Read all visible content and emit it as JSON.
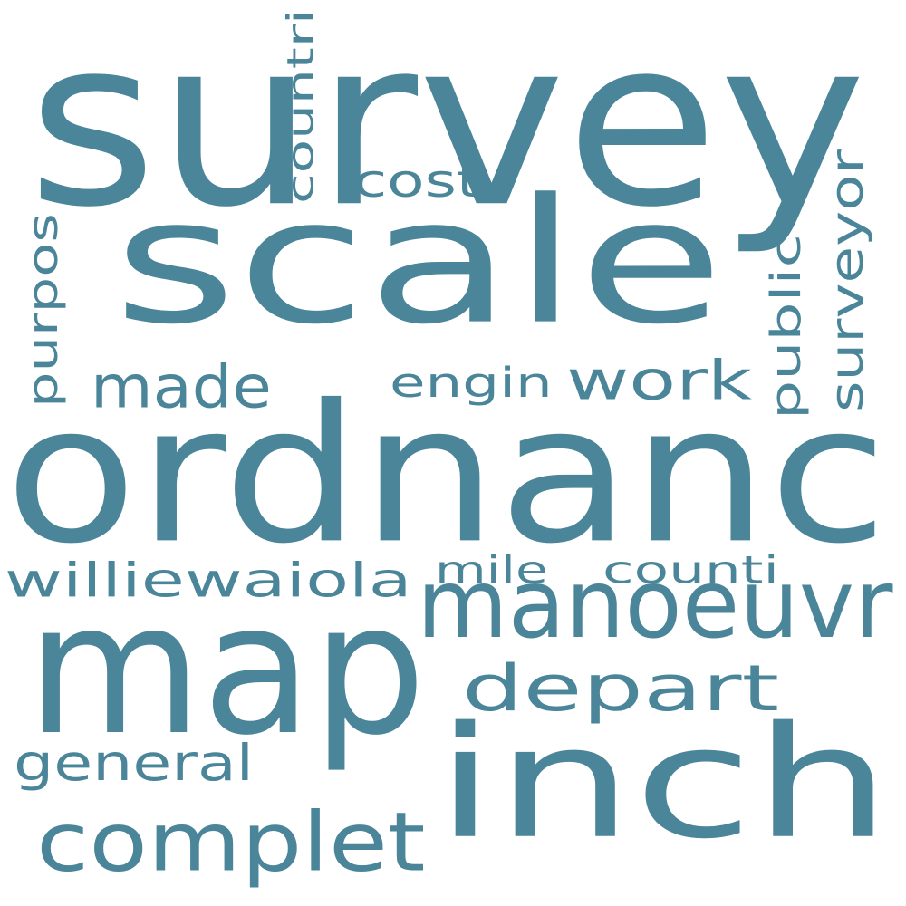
{
  "color": "#4a8599",
  "background": "#ffffff",
  "words": {
    "survey": "survey",
    "scale": "scale",
    "ordnanc": "ordnanc",
    "map": "map",
    "inch": "inch",
    "manoeuvr": "manoeuvr",
    "complet": "complet",
    "depart": "depart",
    "made": "made",
    "work": "work",
    "williewaiola": "williewaiola",
    "general": "general",
    "engin": "engin",
    "counti": "counti",
    "mile": "mile",
    "cost": "cost",
    "countri": "countri",
    "purpos": "purpos",
    "public": "public",
    "surveyor": "surveyor"
  }
}
